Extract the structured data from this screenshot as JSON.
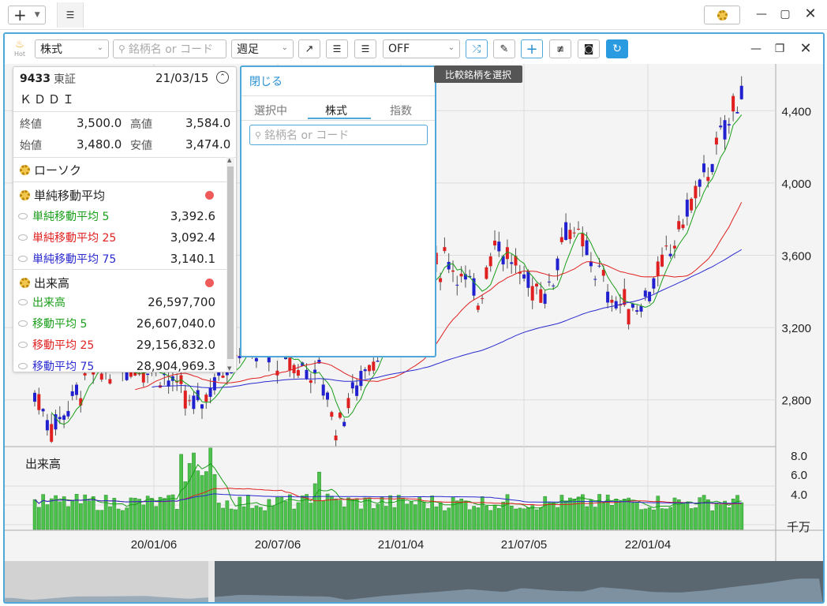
{
  "titlebar": {
    "add_label": "+",
    "settings_icon": "gear-icon"
  },
  "toolbar": {
    "hot_label": "Hot",
    "market_select": "株式",
    "search_placeholder": "銘柄名 or コード",
    "period_select": "週足",
    "indicator_select": "OFF",
    "tooltip": "比較銘柄を選択"
  },
  "stock": {
    "code": "9433",
    "exchange": "東証",
    "date": "21/03/15",
    "name": "ＫＤＤＩ",
    "close_label": "終値",
    "close": "3,500.0",
    "high_label": "高値",
    "high": "3,584.0",
    "open_label": "始値",
    "open": "3,480.0",
    "low_label": "安値",
    "low": "3,474.0"
  },
  "indicators": {
    "candle": "ローソク",
    "sma_group": "単純移動平均",
    "sma5_label": "単純移動平均 5",
    "sma5": "3,392.6",
    "sma25_label": "単純移動平均 25",
    "sma25": "3,092.4",
    "sma75_label": "単純移動平均 75",
    "sma75": "3,140.1",
    "vol_group": "出来高",
    "vol_label": "出来高",
    "vol": "26,597,700",
    "ma5_label": "移動平均 5",
    "ma5": "26,607,040.0",
    "ma25_label": "移動平均 25",
    "ma25": "29,156,832.0",
    "ma75_label": "移動平均 75",
    "ma75": "28,904,969.3"
  },
  "compare": {
    "close": "閉じる",
    "tabs": [
      "選択中",
      "株式",
      "指数"
    ],
    "search_placeholder": "銘柄名 or コード"
  },
  "chart": {
    "volume_title": "出来高",
    "volume_unit": "千万",
    "price_ticks": [
      "4,400",
      "4,000",
      "3,600",
      "3,200",
      "2,800"
    ],
    "volume_ticks": [
      "8.0",
      "6.0",
      "4.0"
    ],
    "date_ticks": [
      "20/01/06",
      "20/07/06",
      "21/01/04",
      "21/07/05",
      "22/01/04"
    ]
  },
  "chart_data": {
    "type": "candlestick",
    "title": "",
    "ylim": [
      2550,
      4650
    ],
    "xlabels": [
      "20/01/06",
      "20/07/06",
      "21/01/04",
      "21/07/05",
      "22/01/04"
    ],
    "colors": {
      "up": "#e02020",
      "down": "#2020d0",
      "sma5": "#1a9e1a",
      "sma25": "#e02020",
      "sma75": "#2a2ad0",
      "volume": "#4cc24c"
    }
  }
}
